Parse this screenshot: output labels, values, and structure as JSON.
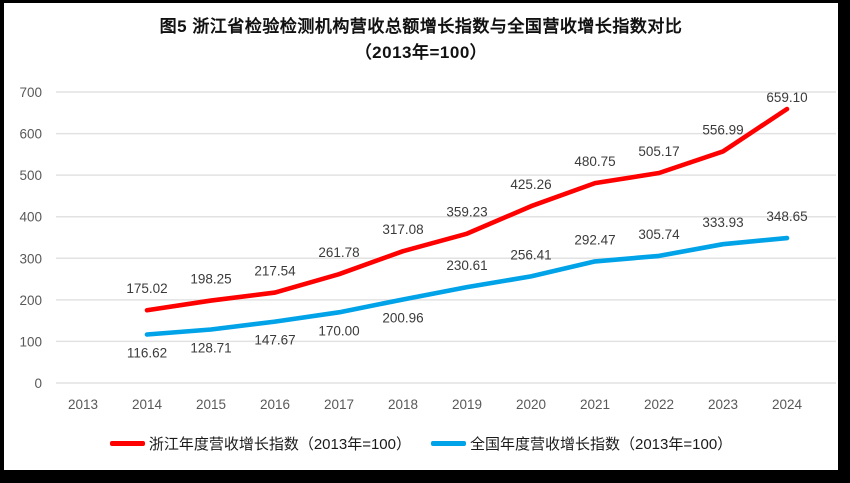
{
  "title": {
    "line1": "图5  浙江省检验检测机构营收总额增长指数与全国营收增长指数对比",
    "line2": "（2013年=100）"
  },
  "chart_data": {
    "type": "line",
    "x": [
      2013,
      2014,
      2015,
      2016,
      2017,
      2018,
      2019,
      2020,
      2021,
      2022,
      2023,
      2024
    ],
    "series": [
      {
        "name": "浙江年度营收增长指数（2013年=100）",
        "color": "#FF0000",
        "x_start": 2014,
        "values": [
          175.02,
          198.25,
          217.54,
          261.78,
          317.08,
          359.23,
          425.26,
          480.75,
          505.17,
          556.99,
          659.1
        ],
        "label_positions": [
          "above",
          "above",
          "above",
          "above",
          "above",
          "above",
          "above",
          "above",
          "above",
          "above",
          "above"
        ]
      },
      {
        "name": "全国年度营收增长指数（2013年=100）",
        "color": "#00A2E8",
        "x_start": 2014,
        "values": [
          116.62,
          128.71,
          147.67,
          170.0,
          200.96,
          230.61,
          256.41,
          292.47,
          305.74,
          333.93,
          348.65
        ],
        "label_positions": [
          "below",
          "below",
          "below",
          "below",
          "below",
          "above",
          "above",
          "above",
          "above",
          "above",
          "above"
        ]
      }
    ],
    "ylim": [
      0,
      700
    ],
    "ytick_step": 100,
    "ytick_labels": [
      "0",
      "100",
      "200",
      "300",
      "400",
      "500",
      "600",
      "700"
    ],
    "xtick_labels": [
      "2013",
      "2014",
      "2015",
      "2016",
      "2017",
      "2018",
      "2019",
      "2020",
      "2021",
      "2022",
      "2023",
      "2024"
    ],
    "grid": true,
    "legend_position": "bottom",
    "value_label_decimals": 2,
    "colors": {
      "grid": "#E2E2E2",
      "axis_text": "#595959",
      "value_label_text": "#3B3B3B"
    }
  }
}
